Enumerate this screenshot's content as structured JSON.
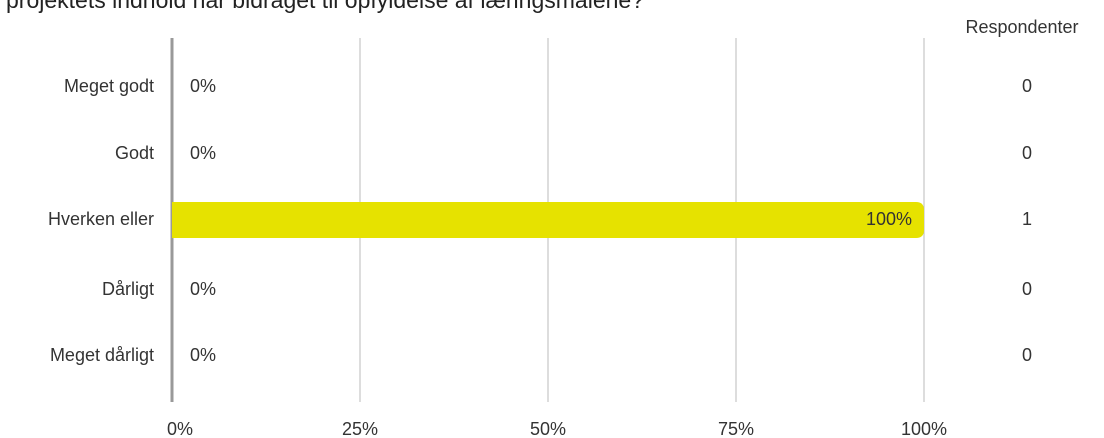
{
  "chart_data": {
    "type": "bar",
    "orientation": "horizontal",
    "title": "projektets indhold har bidraget til opfyldelse af læringsmålene?",
    "categories": [
      "Meget godt",
      "Godt",
      "Hverken eller",
      "Dårligt",
      "Meget dårligt"
    ],
    "values": [
      0,
      0,
      100,
      0,
      0
    ],
    "value_labels": [
      "0%",
      "0%",
      "100%",
      "0%",
      "0%"
    ],
    "color": "#e6e200",
    "respondents_label": "Respondenter",
    "respondents": [
      0,
      0,
      1,
      0,
      0
    ],
    "xlim": [
      0,
      100
    ],
    "xticks": [
      {
        "value": 0,
        "label": "0%"
      },
      {
        "value": 25,
        "label": "25%"
      },
      {
        "value": 50,
        "label": "50%"
      },
      {
        "value": 75,
        "label": "75%"
      },
      {
        "value": 100,
        "label": "100%"
      }
    ],
    "grid": true
  }
}
